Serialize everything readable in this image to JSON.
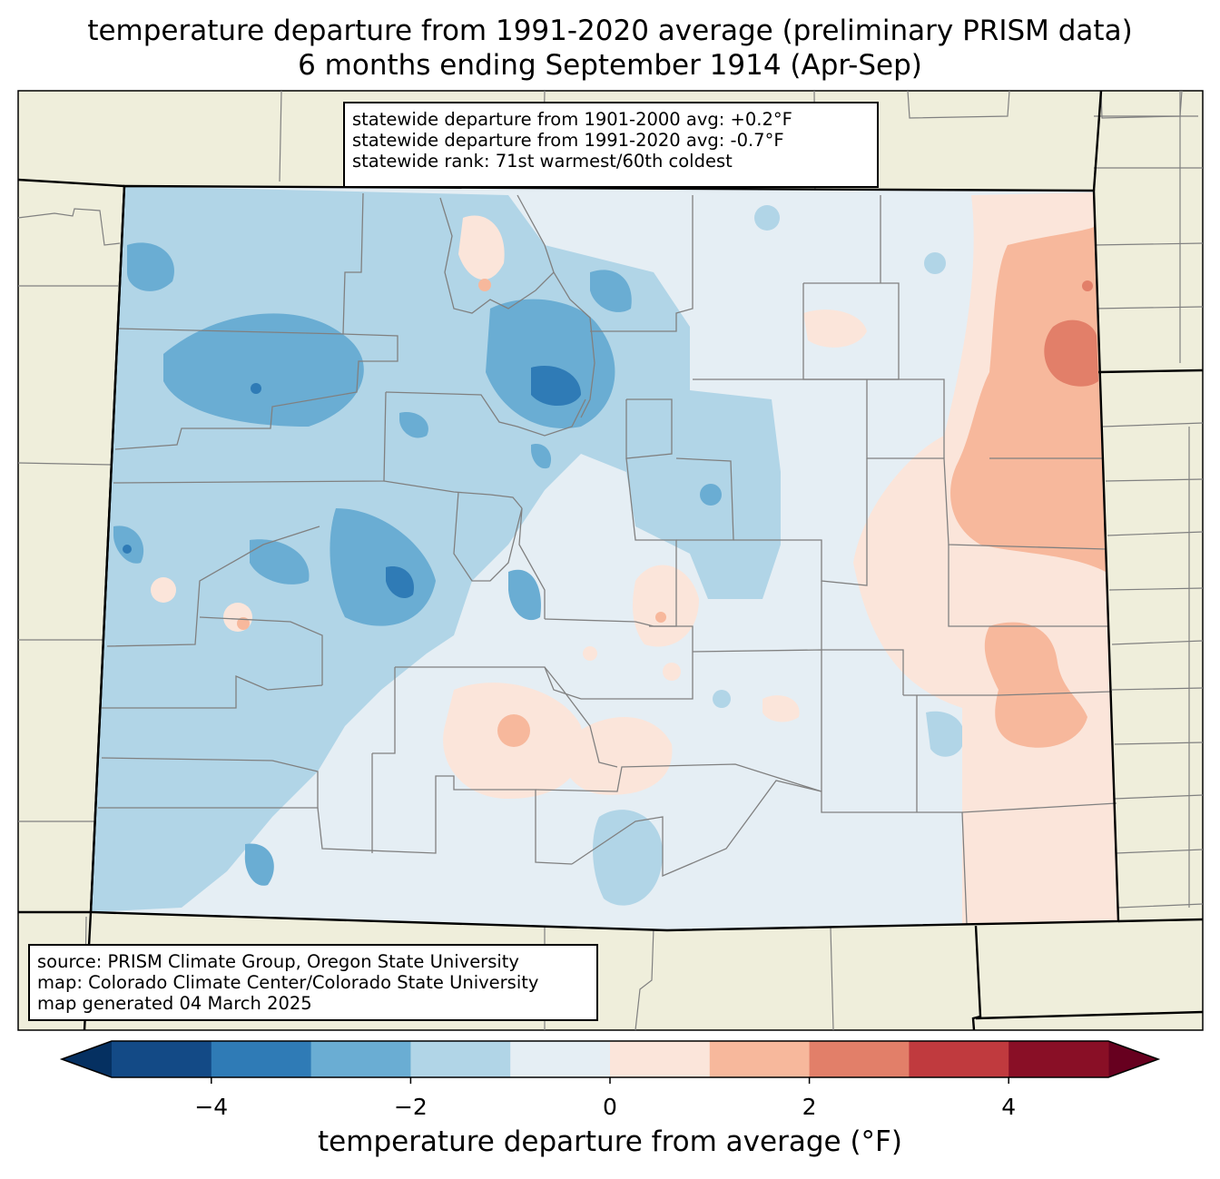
{
  "title": {
    "line1": "temperature departure from 1991-2020 average (preliminary PRISM data)",
    "line2": "6 months ending September 1914 (Apr-Sep)"
  },
  "stats_box": {
    "line1": "statewide departure from 1901-2000 avg: +0.2°F",
    "line2": "statewide departure from 1991-2020 avg: -0.7°F",
    "line3": "statewide rank: 71st warmest/60th coldest"
  },
  "source_box": {
    "line1": "source: PRISM Climate Group, Oregon State University",
    "line2": "map: Colorado Climate Center/Colorado State University",
    "line3": "map generated 04 March 2025"
  },
  "colorbar": {
    "label": "temperature departure from average (°F)",
    "min": -5,
    "max": 5,
    "extend": "both",
    "bins": [
      {
        "from": -5,
        "to": -4,
        "color": "#134a86"
      },
      {
        "from": -4,
        "to": -3,
        "color": "#2f7bb6"
      },
      {
        "from": -3,
        "to": -2,
        "color": "#6aadd3"
      },
      {
        "from": -2,
        "to": -1,
        "color": "#b1d5e7"
      },
      {
        "from": -1,
        "to": 0,
        "color": "#e5eef4"
      },
      {
        "from": 0,
        "to": 1,
        "color": "#fbe5da"
      },
      {
        "from": 1,
        "to": 2,
        "color": "#f7b89c"
      },
      {
        "from": 2,
        "to": 3,
        "color": "#e27f69"
      },
      {
        "from": 3,
        "to": 4,
        "color": "#c03a3e"
      },
      {
        "from": 4,
        "to": 5,
        "color": "#890f26"
      }
    ],
    "under_color": "#053061",
    "over_color": "#67001f",
    "ticks": [
      "−4",
      "−2",
      "0",
      "2",
      "4"
    ]
  },
  "colors": {
    "land_background": "#efeedb",
    "county_lines": "#808080",
    "state_lines": "#000000"
  }
}
